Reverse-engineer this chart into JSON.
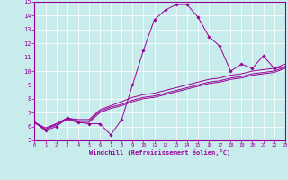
{
  "xlabel": "Windchill (Refroidissement éolien,°C)",
  "ylabel": "",
  "background_color": "#c8ecec",
  "line_color": "#990099",
  "xmin": 0,
  "xmax": 23,
  "ymin": 5,
  "ymax": 15,
  "yticks": [
    5,
    6,
    7,
    8,
    9,
    10,
    11,
    12,
    13,
    14,
    15
  ],
  "xticks": [
    0,
    1,
    2,
    3,
    4,
    5,
    6,
    7,
    8,
    9,
    10,
    11,
    12,
    13,
    14,
    15,
    16,
    17,
    18,
    19,
    20,
    21,
    22,
    23
  ],
  "main_line_x": [
    0,
    1,
    2,
    3,
    4,
    5,
    6,
    7,
    8,
    9,
    10,
    11,
    12,
    13,
    14,
    15,
    16,
    17,
    18,
    19,
    20,
    21,
    22,
    23
  ],
  "main_line_y": [
    6.3,
    5.7,
    6.0,
    6.6,
    6.3,
    6.2,
    6.2,
    5.4,
    6.5,
    9.0,
    11.5,
    13.7,
    14.4,
    14.8,
    14.8,
    13.9,
    12.5,
    11.8,
    10.0,
    10.5,
    10.2,
    11.1,
    10.2,
    10.3
  ],
  "line2_x": [
    0,
    1,
    2,
    3,
    4,
    5,
    6,
    7,
    8,
    9,
    10,
    11,
    12,
    13,
    14,
    15,
    16,
    17,
    18,
    19,
    20,
    21,
    22,
    23
  ],
  "line2_y": [
    6.3,
    5.8,
    6.1,
    6.5,
    6.3,
    6.3,
    7.0,
    7.3,
    7.5,
    7.8,
    8.0,
    8.1,
    8.3,
    8.5,
    8.7,
    8.9,
    9.1,
    9.2,
    9.4,
    9.5,
    9.7,
    9.8,
    9.9,
    10.2
  ],
  "line3_x": [
    0,
    1,
    2,
    3,
    4,
    5,
    6,
    7,
    8,
    9,
    10,
    11,
    12,
    13,
    14,
    15,
    16,
    17,
    18,
    19,
    20,
    21,
    22,
    23
  ],
  "line3_y": [
    6.3,
    5.8,
    6.2,
    6.6,
    6.4,
    6.4,
    7.1,
    7.4,
    7.6,
    7.9,
    8.1,
    8.2,
    8.4,
    8.6,
    8.8,
    9.0,
    9.2,
    9.3,
    9.5,
    9.6,
    9.8,
    9.9,
    10.0,
    10.3
  ],
  "line4_x": [
    0,
    1,
    2,
    3,
    4,
    5,
    6,
    7,
    8,
    9,
    10,
    11,
    12,
    13,
    14,
    15,
    16,
    17,
    18,
    19,
    20,
    21,
    22,
    23
  ],
  "line4_y": [
    6.3,
    5.9,
    6.2,
    6.6,
    6.5,
    6.5,
    7.2,
    7.5,
    7.8,
    8.1,
    8.3,
    8.4,
    8.6,
    8.8,
    9.0,
    9.2,
    9.4,
    9.5,
    9.7,
    9.8,
    10.0,
    10.1,
    10.2,
    10.5
  ]
}
